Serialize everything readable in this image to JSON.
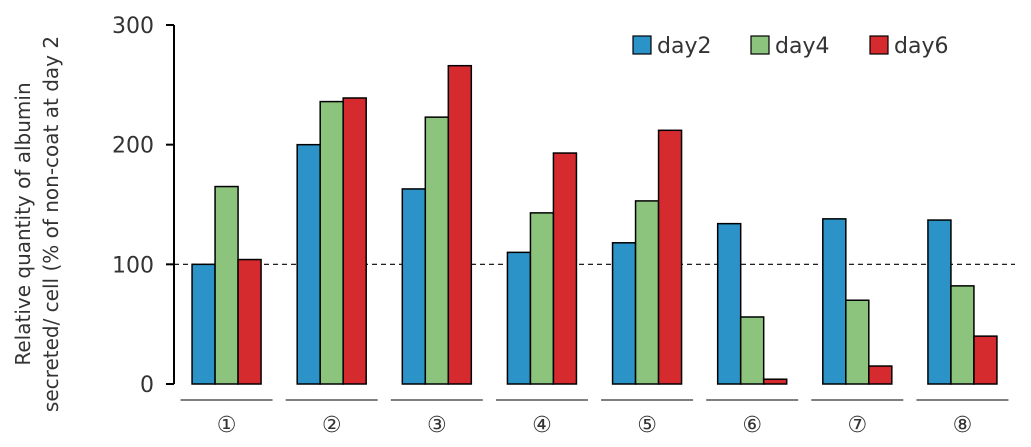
{
  "chart_data": {
    "type": "bar",
    "categories": [
      "①",
      "②",
      "③",
      "④",
      "⑤",
      "⑥",
      "⑦",
      "⑧"
    ],
    "series": [
      {
        "name": "day2",
        "color": "#2b93c8",
        "values": [
          100,
          200,
          163,
          110,
          118,
          134,
          138,
          137
        ]
      },
      {
        "name": "day4",
        "color": "#8cc47e",
        "values": [
          165,
          236,
          223,
          143,
          153,
          56,
          70,
          82
        ]
      },
      {
        "name": "day6",
        "color": "#d62b2e",
        "values": [
          104,
          239,
          266,
          193,
          212,
          4,
          15,
          40
        ]
      }
    ],
    "ylabel_lines": [
      "Relative quantity of albumin",
      "secreted/ cell (% of non-coat at day 2"
    ],
    "ylim": [
      0,
      300
    ],
    "yticks": [
      "0",
      "100",
      "200",
      "300"
    ],
    "reference_line": 100,
    "legend_position": "top-right",
    "grid": false
  }
}
